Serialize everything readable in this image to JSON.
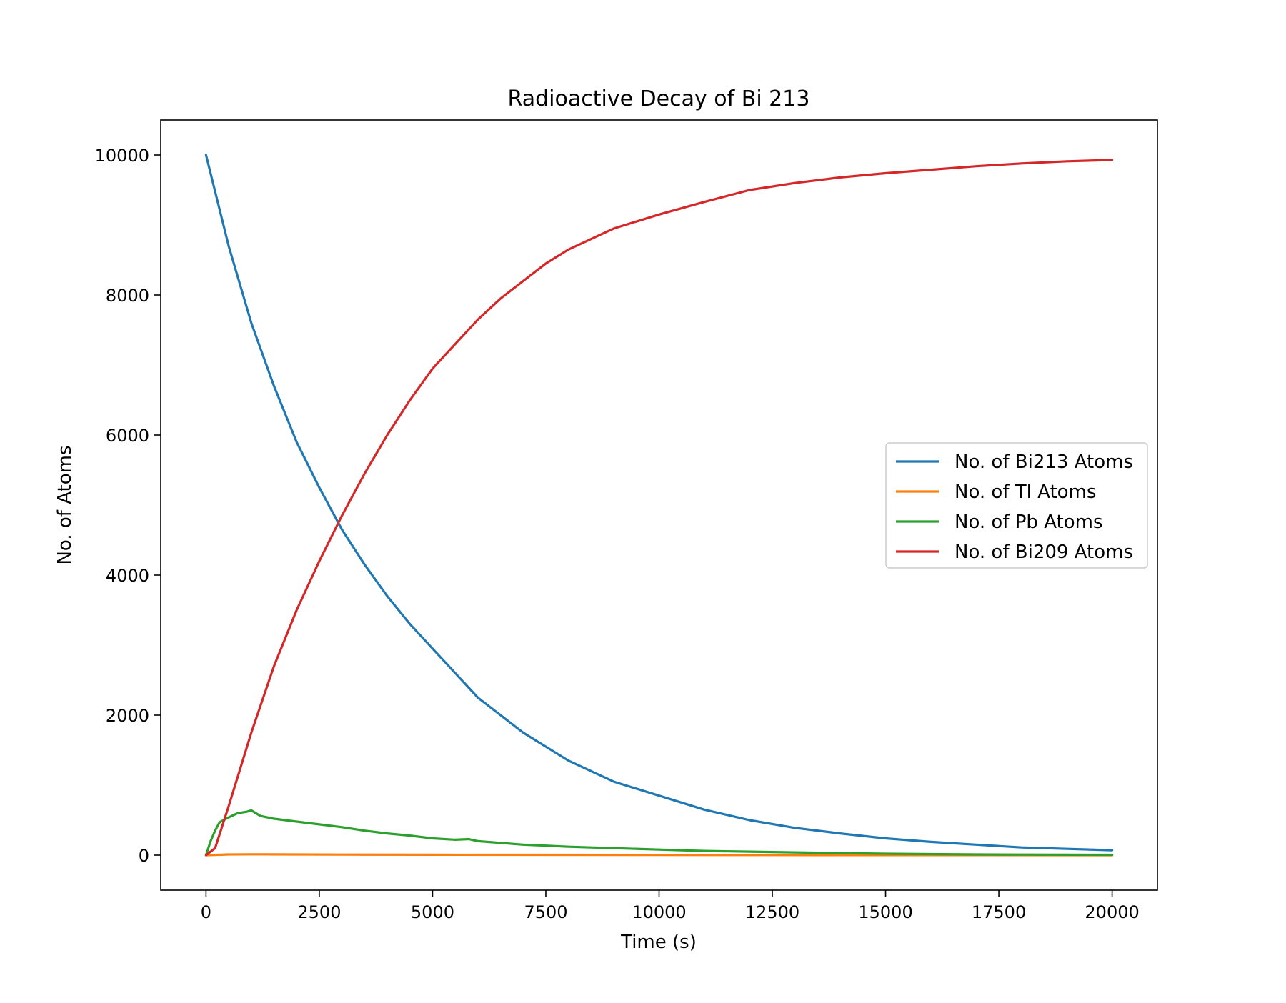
{
  "chart_data": {
    "type": "line",
    "title": "Radioactive Decay of Bi 213",
    "xlabel": "Time (s)",
    "ylabel": "No. of Atoms",
    "xlim": [
      -1000,
      21000
    ],
    "ylim": [
      -500,
      10500
    ],
    "x_ticks": [
      0,
      2500,
      5000,
      7500,
      10000,
      12500,
      15000,
      17500,
      20000
    ],
    "y_ticks": [
      0,
      2000,
      4000,
      6000,
      8000,
      10000
    ],
    "grid": false,
    "legend_position": "center-right",
    "series": [
      {
        "name": "No. of Bi213 Atoms",
        "color": "#1f77b4",
        "x": [
          0,
          500,
          1000,
          1500,
          2000,
          2500,
          3000,
          3500,
          4000,
          4500,
          5000,
          6000,
          7000,
          8000,
          9000,
          10000,
          11000,
          12000,
          13000,
          14000,
          15000,
          16000,
          17000,
          18000,
          19000,
          20000
        ],
        "y": [
          10000,
          8700,
          7600,
          6700,
          5900,
          5250,
          4650,
          4150,
          3700,
          3300,
          2950,
          2250,
          1750,
          1350,
          1050,
          850,
          650,
          500,
          390,
          310,
          240,
          190,
          150,
          110,
          90,
          70
        ]
      },
      {
        "name": "No. of Tl Atoms",
        "color": "#ff7f0e",
        "x": [
          0,
          500,
          1000,
          2000,
          3000,
          5000,
          7500,
          10000,
          12500,
          15000,
          17500,
          20000
        ],
        "y": [
          0,
          10,
          12,
          10,
          8,
          6,
          5,
          3,
          2,
          1,
          1,
          0
        ]
      },
      {
        "name": "No. of Pb Atoms",
        "color": "#2ca02c",
        "x": [
          0,
          100,
          200,
          300,
          500,
          700,
          900,
          1000,
          1200,
          1500,
          2000,
          2500,
          3000,
          3500,
          4000,
          4500,
          5000,
          5500,
          5800,
          6000,
          7000,
          8000,
          9000,
          10000,
          11000,
          12000,
          13000,
          14000,
          15000,
          16000,
          17000,
          18000,
          19000,
          20000
        ],
        "y": [
          0,
          200,
          350,
          470,
          540,
          600,
          620,
          640,
          560,
          520,
          480,
          440,
          400,
          350,
          310,
          280,
          240,
          220,
          230,
          200,
          150,
          120,
          100,
          80,
          60,
          50,
          40,
          30,
          20,
          15,
          10,
          8,
          6,
          5
        ]
      },
      {
        "name": "No. of Bi209 Atoms",
        "color": "#d62728",
        "x": [
          0,
          200,
          500,
          1000,
          1500,
          2000,
          2500,
          3000,
          3500,
          4000,
          4500,
          5000,
          5500,
          6000,
          6500,
          7000,
          7500,
          8000,
          8500,
          9000,
          10000,
          11000,
          12000,
          13000,
          14000,
          15000,
          16000,
          17000,
          18000,
          19000,
          20000
        ],
        "y": [
          0,
          100,
          700,
          1750,
          2700,
          3500,
          4200,
          4850,
          5450,
          6000,
          6500,
          6950,
          7300,
          7650,
          7950,
          8200,
          8450,
          8650,
          8800,
          8950,
          9150,
          9330,
          9500,
          9600,
          9680,
          9740,
          9790,
          9840,
          9880,
          9910,
          9930
        ]
      }
    ]
  }
}
